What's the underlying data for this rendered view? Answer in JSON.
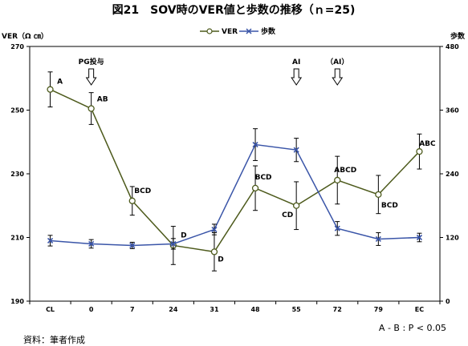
{
  "chart_data": {
    "type": "line",
    "title": "図21　SOV時のVER値と歩数の推移（ｎ=25)",
    "y_label": "VER（Ω ㎝）",
    "y2_label": "歩数",
    "categories": [
      "CL",
      "0",
      "7",
      "24",
      "31",
      "48",
      "55",
      "72",
      "79",
      "EC"
    ],
    "ylim": [
      190,
      270
    ],
    "yticks": [
      190,
      210,
      230,
      250,
      270
    ],
    "y2lim": [
      0,
      480
    ],
    "y2ticks": [
      0,
      120,
      240,
      360,
      480
    ],
    "grid": false,
    "legend_position": "top-center",
    "series": [
      {
        "name": "VER",
        "axis": "left",
        "color": "#4d5a1c",
        "marker": "circle",
        "values": [
          256.5,
          250.5,
          221.5,
          207.5,
          205.5,
          225.5,
          220,
          228,
          223.5,
          237
        ],
        "error": [
          5.5,
          5,
          4.5,
          6,
          6,
          7,
          7.5,
          7.5,
          6,
          5.5
        ],
        "labels": [
          "A",
          "AB",
          "BCD",
          "D",
          "D",
          "BCD",
          "CD",
          "ABCD",
          "BCD",
          "ABC"
        ]
      },
      {
        "name": "歩数",
        "axis": "right",
        "color": "#3a55a8",
        "marker": "x",
        "values": [
          114,
          108,
          105,
          108,
          135,
          295,
          285,
          137,
          117,
          120
        ],
        "error": [
          10,
          8,
          6,
          10,
          10,
          30,
          22,
          13,
          12,
          8
        ]
      }
    ],
    "annotations": [
      {
        "text": "PG投与",
        "category": "0"
      },
      {
        "text": "AI",
        "category": "55"
      },
      {
        "text": "（AI）",
        "category": "72"
      }
    ],
    "footnote_right": "A - B : P < 0.05",
    "source": "資料：筆者作成"
  }
}
